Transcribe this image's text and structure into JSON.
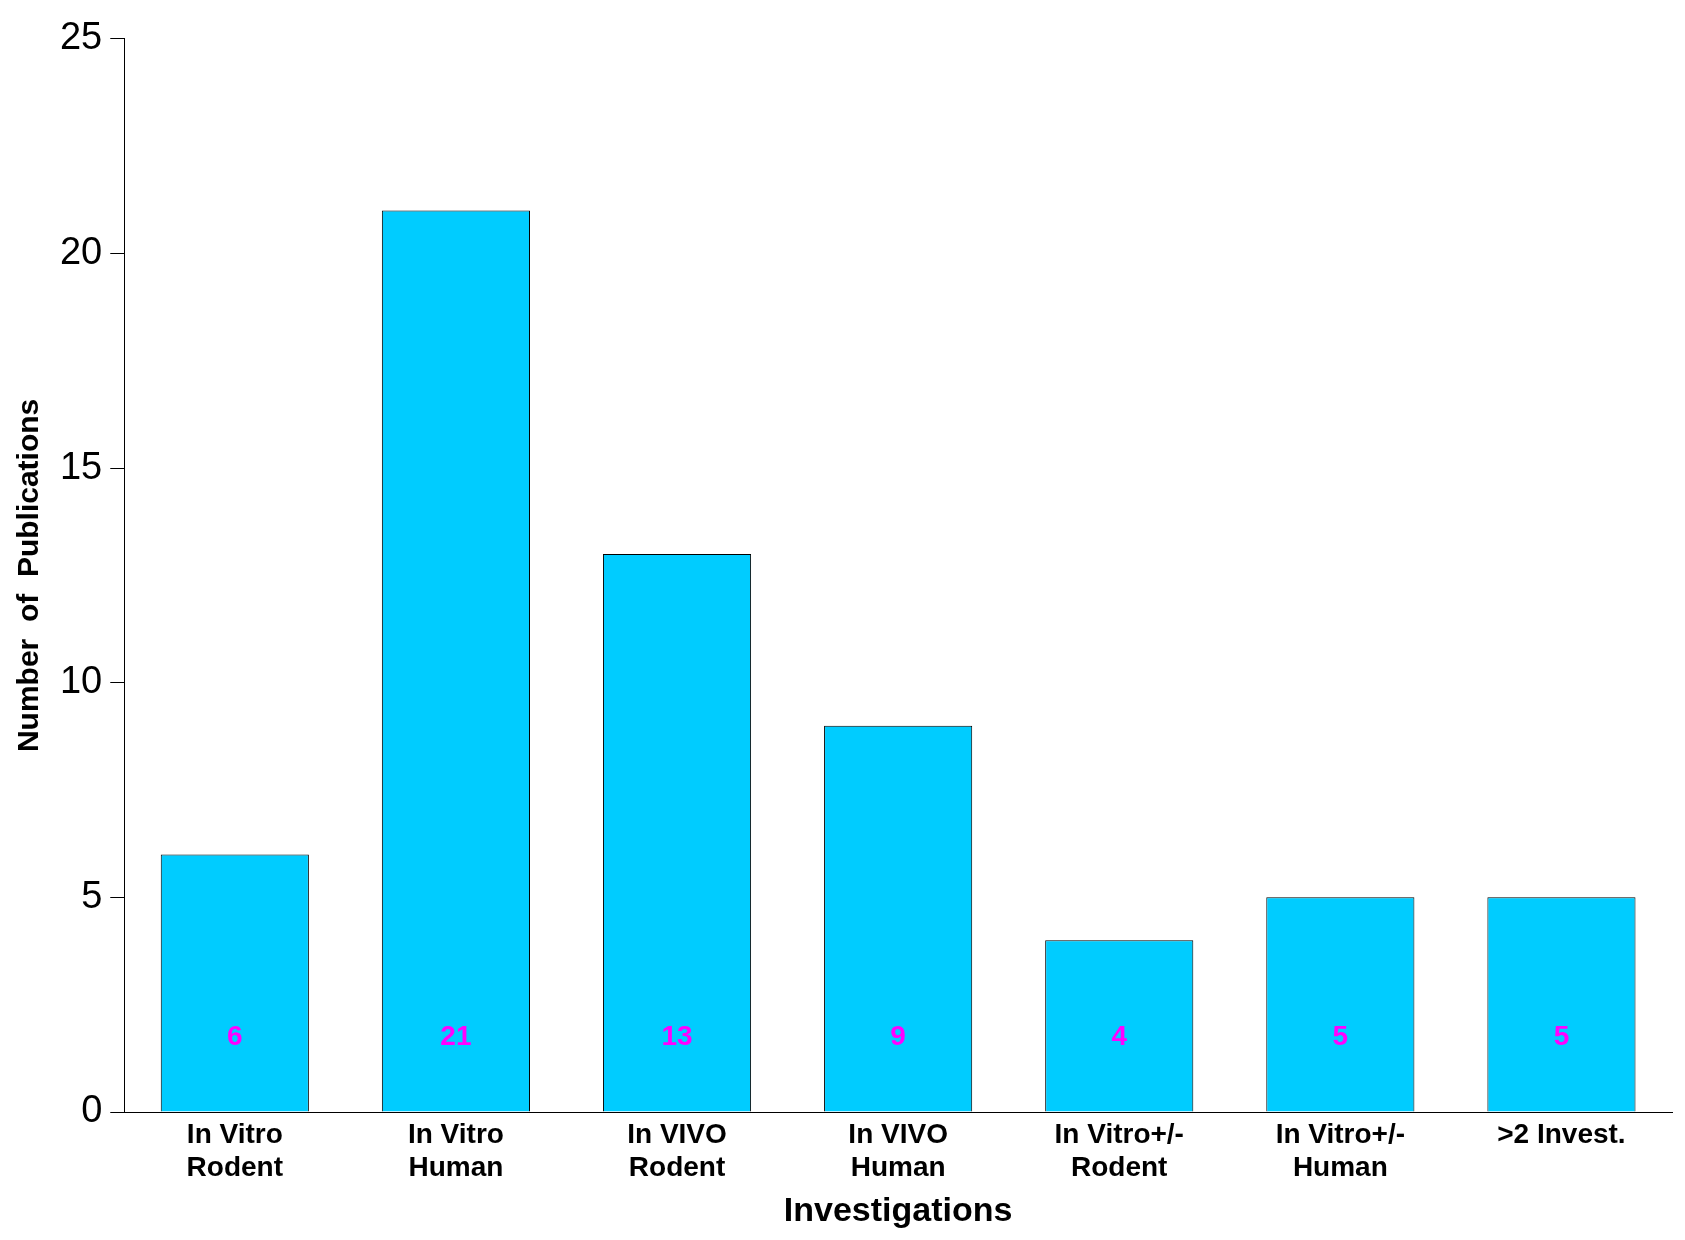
{
  "chart_data": {
    "type": "bar",
    "xlabel": "Investigations",
    "ylabel": "Number  of  Publications",
    "categories": [
      "In Vitro\nRodent",
      "In Vitro\nHuman",
      "In VIVO\nRodent",
      "In VIVO\nHuman",
      "In Vitro+/-\nRodent",
      "In Vitro+/-\nHuman",
      ">2 Invest."
    ],
    "values": [
      6,
      21,
      13,
      9,
      4,
      5,
      5
    ],
    "color": "#00ccff",
    "data_labels": true,
    "ylim": [
      0,
      25
    ],
    "yticks": [
      0,
      5,
      10,
      15,
      20,
      25
    ],
    "grid": false,
    "legend": false
  }
}
